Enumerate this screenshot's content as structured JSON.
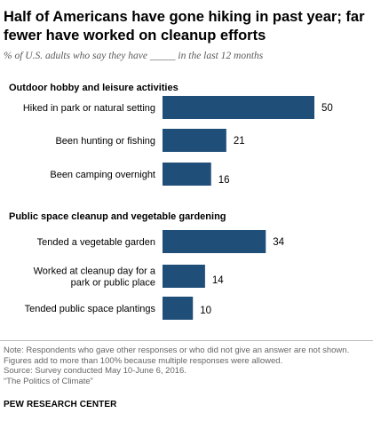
{
  "title_line1": "Half of Americans have gone hiking in past year; far",
  "title_line2": "fewer have worked on cleanup efforts",
  "subtitle": "% of U.S. adults who say they have _____ in the last 12 months",
  "colors": {
    "bar": "#1f4e79",
    "section_rule": "#bdbdbd",
    "note_text": "#666666"
  },
  "chart_data": {
    "type": "bar",
    "orientation": "horizontal",
    "xlim": [
      0,
      50
    ],
    "groups": [
      {
        "title": "Outdoor hobby and leisure activities",
        "categories": [
          "Hiked in park or natural setting",
          "Been hunting or fishing",
          "Been camping overnight"
        ],
        "values": [
          50,
          21,
          16
        ]
      },
      {
        "title": "Public space cleanup and vegetable gardening",
        "categories": [
          "Tended a vegetable garden",
          "Worked at cleanup day for a park or public place",
          "Tended public space plantings"
        ],
        "values": [
          34,
          14,
          10
        ]
      }
    ]
  },
  "label_lines": [
    [
      "Hiked in park or natural setting"
    ],
    [
      "Been hunting or fishing"
    ],
    [
      "Been camping overnight"
    ],
    [
      "Tended a vegetable garden"
    ],
    [
      "Worked at cleanup day for a",
      "park or public place"
    ],
    [
      "Tended public space plantings"
    ]
  ],
  "notes": [
    "Note: Respondents who gave other responses or who did not give an answer are not shown.",
    "Figures add to more than 100% because multiple responses were allowed.",
    "Source: Survey conducted May 10-June 6, 2016.",
    "“The Politics of Climate”"
  ],
  "brand": "PEW RESEARCH CENTER"
}
